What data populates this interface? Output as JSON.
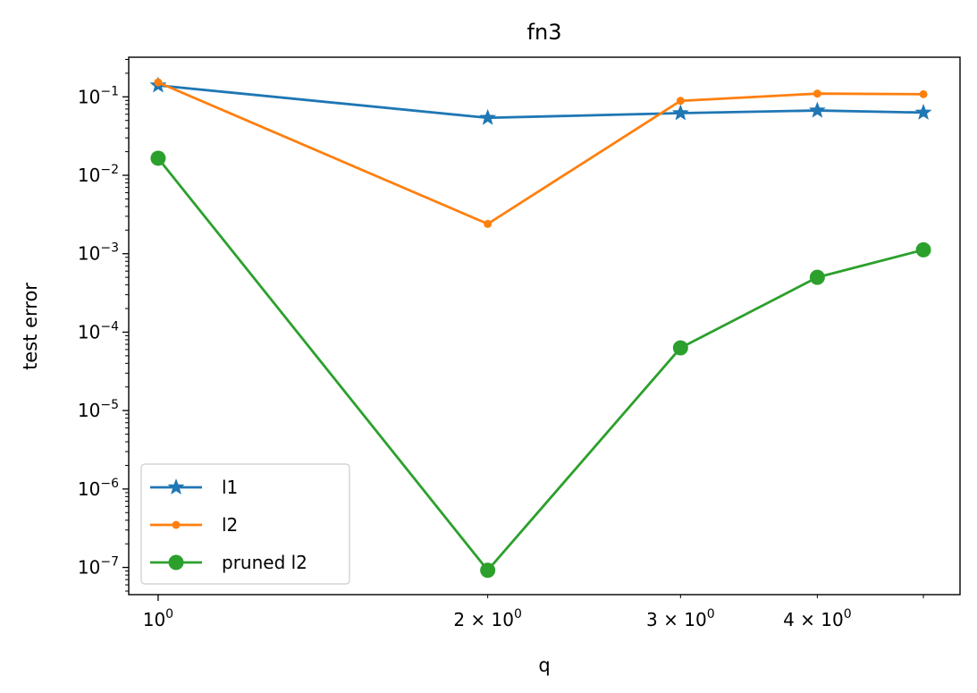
{
  "chart_data": {
    "type": "line",
    "title": "fn3",
    "xlabel": "q",
    "ylabel": "test error",
    "xscale": "log",
    "yscale": "log",
    "xlim": [
      0.94,
      5.4
    ],
    "ylim": [
      4.5e-08,
      0.32
    ],
    "x_ticks": [
      {
        "value": 1,
        "base": "10",
        "exp": "0"
      },
      {
        "value": 2,
        "base": "2 × 10",
        "exp": "0"
      },
      {
        "value": 3,
        "base": "3 × 10",
        "exp": "0"
      },
      {
        "value": 4,
        "base": "4 × 10",
        "exp": "0"
      }
    ],
    "y_ticks": [
      {
        "value": 1e-07,
        "base": "10",
        "exp": "−7"
      },
      {
        "value": 1e-06,
        "base": "10",
        "exp": "−6"
      },
      {
        "value": 1e-05,
        "base": "10",
        "exp": "−5"
      },
      {
        "value": 0.0001,
        "base": "10",
        "exp": "−4"
      },
      {
        "value": 0.001,
        "base": "10",
        "exp": "−3"
      },
      {
        "value": 0.01,
        "base": "10",
        "exp": "−2"
      },
      {
        "value": 0.1,
        "base": "10",
        "exp": "−1"
      }
    ],
    "x": [
      1,
      2,
      3,
      4,
      5
    ],
    "series": [
      {
        "name": "l1",
        "color": "#1f77b4",
        "marker": "star",
        "values": [
          0.14,
          0.054,
          0.062,
          0.067,
          0.063
        ]
      },
      {
        "name": "l2",
        "color": "#ff7f0e",
        "marker": "point",
        "values": [
          0.153,
          0.0024,
          0.089,
          0.11,
          0.108
        ]
      },
      {
        "name": "pruned l2",
        "color": "#2ca02c",
        "marker": "circle",
        "values": [
          0.0165,
          9.2e-08,
          6.3e-05,
          0.0005,
          0.00112
        ]
      }
    ],
    "grid": false,
    "legend_position": "lower-left"
  }
}
